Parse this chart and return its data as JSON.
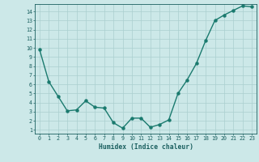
{
  "x": [
    0,
    1,
    2,
    3,
    4,
    5,
    6,
    7,
    8,
    9,
    10,
    11,
    12,
    13,
    14,
    15,
    16,
    17,
    18,
    19,
    20,
    21,
    22,
    23
  ],
  "y": [
    9.8,
    6.3,
    4.7,
    3.1,
    3.2,
    4.2,
    3.5,
    3.4,
    1.8,
    1.2,
    2.3,
    2.3,
    1.3,
    1.6,
    2.1,
    5.0,
    6.5,
    8.3,
    10.8,
    13.0,
    13.6,
    14.1,
    14.6,
    14.5
  ],
  "line_color": "#1a7a6e",
  "bg_color": "#cce8e8",
  "grid_color": "#aacfcf",
  "xlabel": "Humidex (Indice chaleur)",
  "ylim": [
    0.6,
    14.8
  ],
  "xlim": [
    -0.5,
    23.5
  ],
  "yticks": [
    1,
    2,
    3,
    4,
    5,
    6,
    7,
    8,
    9,
    10,
    11,
    12,
    13,
    14
  ],
  "xticks": [
    0,
    1,
    2,
    3,
    4,
    5,
    6,
    7,
    8,
    9,
    10,
    11,
    12,
    13,
    14,
    15,
    16,
    17,
    18,
    19,
    20,
    21,
    22,
    23
  ],
  "font_color": "#1a5f5f",
  "marker_size": 2.2,
  "line_width": 1.0,
  "tick_fontsize": 4.8,
  "xlabel_fontsize": 5.8
}
